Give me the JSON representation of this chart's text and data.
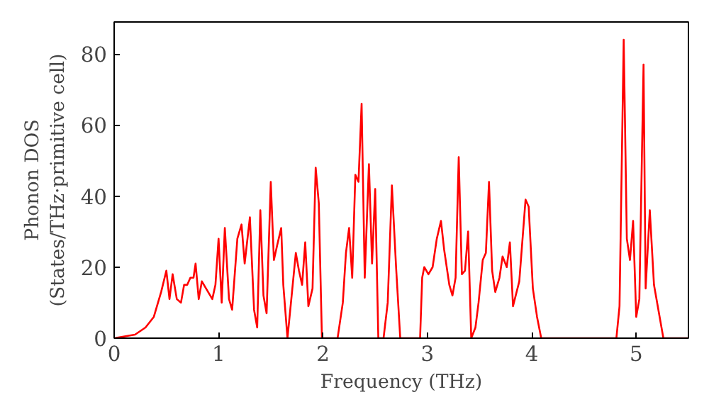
{
  "chart_data": {
    "type": "line",
    "xlabel": "Frequency (THz)",
    "ylabel": "Phonon DOS\n(States/THz·primitive cell)",
    "xlim": [
      0,
      5.5
    ],
    "ylim": [
      0,
      89
    ],
    "xticks": [
      0,
      1,
      2,
      3,
      4,
      5
    ],
    "yticks": [
      0,
      20,
      40,
      60,
      80
    ],
    "grid": false,
    "series": [
      {
        "color": "#ff0000",
        "x": [
          0,
          0.2,
          0.3,
          0.38,
          0.45,
          0.5,
          0.53,
          0.56,
          0.6,
          0.64,
          0.67,
          0.7,
          0.73,
          0.76,
          0.78,
          0.81,
          0.84,
          0.9,
          0.94,
          0.97,
          1.0,
          1.03,
          1.06,
          1.1,
          1.13,
          1.18,
          1.22,
          1.25,
          1.3,
          1.34,
          1.37,
          1.4,
          1.43,
          1.46,
          1.5,
          1.53,
          1.56,
          1.6,
          1.62,
          1.66,
          1.7,
          1.74,
          1.77,
          1.8,
          1.83,
          1.86,
          1.9,
          1.93,
          1.96,
          1.99,
          2.06,
          2.14,
          2.19,
          2.22,
          2.25,
          2.28,
          2.31,
          2.34,
          2.37,
          2.4,
          2.44,
          2.47,
          2.5,
          2.53,
          2.58,
          2.62,
          2.66,
          2.7,
          2.74,
          2.93,
          2.95,
          2.97,
          3.01,
          3.05,
          3.09,
          3.13,
          3.16,
          3.21,
          3.24,
          3.27,
          3.3,
          3.33,
          3.36,
          3.39,
          3.42,
          3.46,
          3.49,
          3.53,
          3.56,
          3.59,
          3.62,
          3.65,
          3.69,
          3.72,
          3.76,
          3.79,
          3.82,
          3.88,
          3.94,
          3.97,
          4.01,
          4.05,
          4.09,
          4.81,
          4.84,
          4.88,
          4.91,
          4.94,
          4.97,
          5.0,
          5.03,
          5.07,
          5.09,
          5.13,
          5.17,
          5.26,
          5.5
        ],
        "values": [
          0,
          1,
          3,
          6,
          13,
          19,
          11,
          18,
          11,
          10,
          15,
          15,
          17,
          17,
          21,
          11,
          16,
          13,
          11,
          15,
          28,
          10,
          31,
          11,
          8,
          28,
          32,
          21,
          34,
          8,
          3,
          36,
          12,
          7,
          44,
          22,
          26,
          31,
          15,
          0,
          12,
          24,
          19,
          15,
          27,
          9,
          14,
          48,
          38,
          0,
          0,
          0,
          10,
          24,
          31,
          17,
          46,
          44,
          66,
          17,
          49,
          21,
          42,
          0,
          0,
          10,
          43,
          20,
          0,
          0,
          17,
          20,
          18,
          20,
          28,
          33,
          25,
          15,
          12,
          17,
          51,
          18,
          19,
          30,
          0,
          3,
          10,
          22,
          24,
          44,
          19,
          13,
          17,
          23,
          20,
          27,
          9,
          16,
          39,
          37,
          14,
          6,
          0,
          0,
          9,
          84,
          28,
          22,
          33,
          6,
          11,
          77,
          14,
          36,
          15,
          0,
          0
        ]
      }
    ]
  }
}
